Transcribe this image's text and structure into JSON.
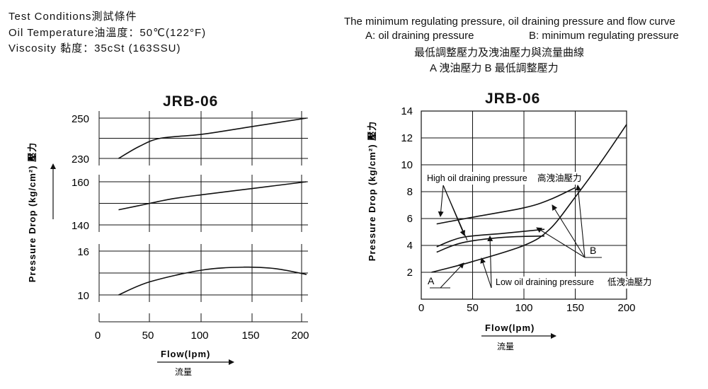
{
  "conditions": {
    "line1": "Test Conditions測試條件",
    "line2": "Oil Temperature油溫度：50℃(122°F)",
    "line3": "Viscosity 黏度：35cSt (163SSU)"
  },
  "right_header": {
    "line1": "The minimum regulating pressure, oil draining pressure and flow curve",
    "line2a": "A: oil draining pressure",
    "line2b": "B: minimum regulating pressure",
    "line3": "最低調整壓力及洩油壓力與流量曲線",
    "line4": "A 洩油壓力   B 最低調整壓力"
  },
  "chart_data": [
    {
      "type": "line",
      "title": "JRB-06",
      "xlabel": "Flow(lpm)",
      "xlabel_cn": "流量",
      "ylabel": "Pressure Drop (kg/cm²) 壓力",
      "x_ticks": [
        "0",
        "50",
        "100",
        "150",
        "200"
      ],
      "xlim": [
        0,
        200
      ],
      "grid": true,
      "panels": [
        {
          "ylim": [
            230,
            250
          ],
          "y_ticks": [
            "250",
            "230"
          ],
          "series": [
            {
              "x": [
                20,
                40,
                60,
                100,
                150,
                200
              ],
              "y": [
                230,
                236,
                240,
                242,
                246,
                250
              ]
            }
          ]
        },
        {
          "ylim": [
            140,
            160
          ],
          "y_ticks": [
            "160",
            "140"
          ],
          "series": [
            {
              "x": [
                20,
                50,
                70,
                100,
                150,
                200
              ],
              "y": [
                147,
                150,
                152,
                154,
                157,
                160
              ]
            }
          ]
        },
        {
          "ylim": [
            10,
            16
          ],
          "y_ticks": [
            "16",
            "10"
          ],
          "series": [
            {
              "x": [
                20,
                50,
                100,
                140,
                170,
                200
              ],
              "y": [
                10,
                11.8,
                13.4,
                13.8,
                13.6,
                12.8
              ]
            }
          ]
        }
      ]
    },
    {
      "type": "line",
      "title": "JRB-06",
      "xlabel": "Flow(lpm)",
      "xlabel_cn": "流量",
      "ylabel": "Pressure Drop (kg/cm²) 壓力",
      "xlim": [
        0,
        200
      ],
      "ylim": [
        0,
        14
      ],
      "x_ticks": [
        "0",
        "50",
        "100",
        "150",
        "200"
      ],
      "y_ticks": [
        "14",
        "12",
        "10",
        "8",
        "6",
        "4",
        "2"
      ],
      "grid": true,
      "annotations": {
        "high": "High oil draining pressure",
        "high_cn": "高洩油壓力",
        "low": "Low oil draining pressure",
        "low_cn": "低洩油壓力",
        "a": "A",
        "b": "B"
      },
      "series": [
        {
          "curve": "B",
          "x": [
            10,
            50,
            100,
            125,
            150,
            175,
            200
          ],
          "y": [
            2.0,
            2.8,
            4.0,
            5.2,
            7.6,
            10.2,
            13.0
          ]
        },
        {
          "curve": "A-high",
          "x": [
            15,
            50,
            100,
            125,
            150
          ],
          "y": [
            5.6,
            6.1,
            6.8,
            7.4,
            8.3
          ]
        },
        {
          "curve": "A-mid",
          "x": [
            15,
            40,
            80,
            120
          ],
          "y": [
            3.9,
            4.6,
            4.9,
            5.2
          ]
        },
        {
          "curve": "A-low",
          "x": [
            15,
            40,
            80,
            120
          ],
          "y": [
            3.5,
            4.2,
            4.6,
            4.7
          ]
        }
      ]
    }
  ]
}
